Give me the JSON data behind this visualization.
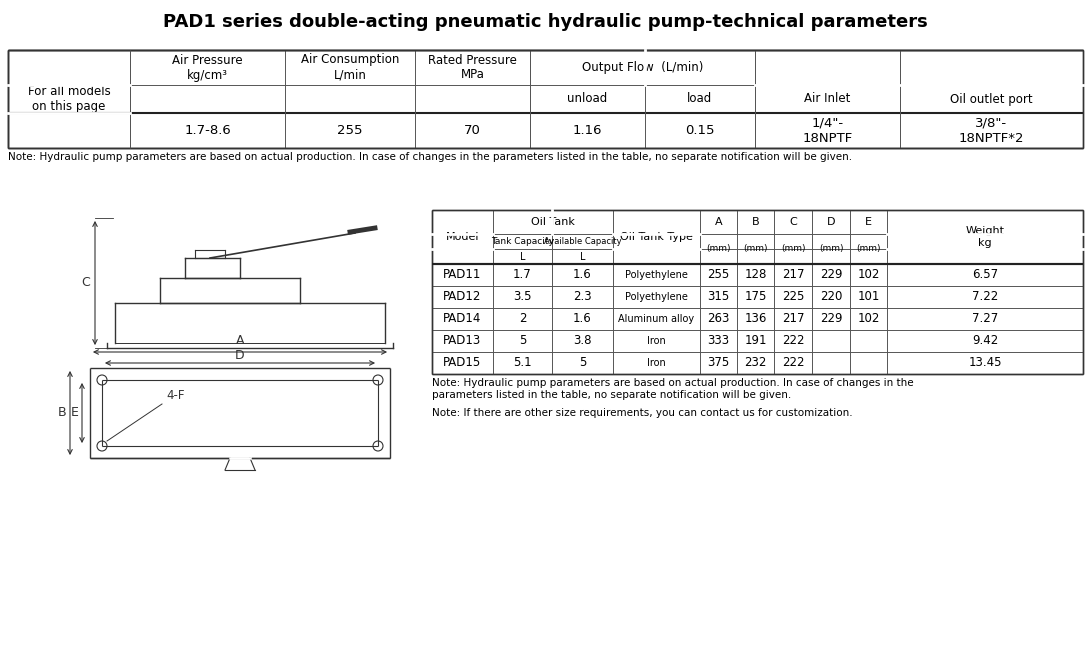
{
  "title": "PAD1 series double-acting pneumatic hydraulic pump-technical parameters",
  "title_fontsize": 13,
  "bg_color": "#ffffff",
  "text_color": "#000000",
  "table1_note": "Note: Hydraulic pump parameters are based on actual production. In case of changes in the parameters listed in the table, no separate notification will be given.",
  "table2_note1": "Note: Hydraulic pump parameters are based on actual production. In case of changes in the\nparameters listed in the table, no separate notification will be given.",
  "table2_note2": "Note: If there are other size requirements, you can contact us for customization.",
  "table2_rows": [
    [
      "PAD11",
      "1.7",
      "1.6",
      "Polyethylene",
      "255",
      "128",
      "217",
      "229",
      "102",
      "6.57"
    ],
    [
      "PAD12",
      "3.5",
      "2.3",
      "Polyethylene",
      "315",
      "175",
      "225",
      "220",
      "101",
      "7.22"
    ],
    [
      "PAD14",
      "2",
      "1.6",
      "Aluminum alloy",
      "263",
      "136",
      "217",
      "229",
      "102",
      "7.27"
    ],
    [
      "PAD13",
      "5",
      "3.8",
      "Iron",
      "333",
      "191",
      "222",
      "",
      "",
      "9.42"
    ],
    [
      "PAD15",
      "5.1",
      "5",
      "Iron",
      "375",
      "232",
      "222",
      "",
      "",
      "13.45"
    ]
  ],
  "line_color": "#555555",
  "draw_color": "#333333"
}
